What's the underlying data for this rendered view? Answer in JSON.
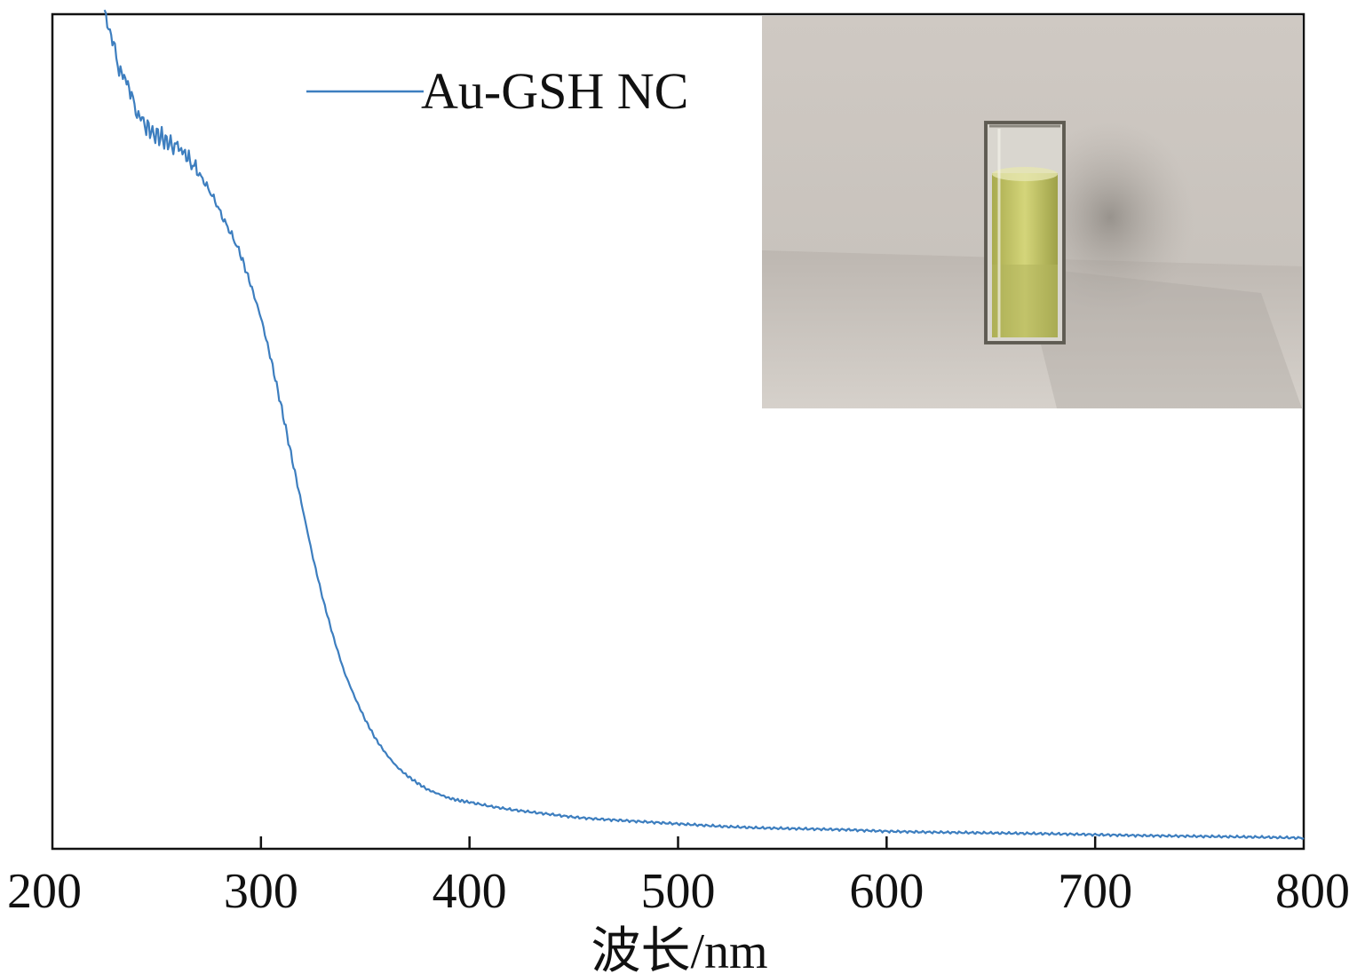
{
  "chart_data": {
    "type": "line",
    "title": "",
    "xlabel": "波长/nm",
    "ylabel": "",
    "xlim": [
      200,
      800
    ],
    "xticks": [
      200,
      300,
      400,
      500,
      600,
      700,
      800
    ],
    "xtick_labels": [
      "200",
      "300",
      "400",
      "500",
      "600",
      "700",
      "800"
    ],
    "ylim": [
      0,
      1
    ],
    "y_ticks_shown": false,
    "grid": false,
    "legend_position": "top-center",
    "series": [
      {
        "name": "Au-GSH NC",
        "color": "#3d7ebf",
        "x": [
          225,
          227,
          230,
          232,
          235,
          238,
          240,
          243,
          245,
          248,
          250,
          253,
          256,
          260,
          263,
          266,
          270,
          274,
          278,
          282,
          286,
          290,
          295,
          300,
          305,
          310,
          315,
          320,
          325,
          330,
          335,
          340,
          345,
          350,
          355,
          360,
          365,
          370,
          375,
          380,
          385,
          390,
          395,
          400,
          410,
          420,
          430,
          440,
          450,
          460,
          480,
          500,
          520,
          540,
          560,
          580,
          600,
          620,
          650,
          680,
          700,
          720,
          750,
          780,
          800
        ],
        "y": [
          1.0,
          0.987,
          0.96,
          0.935,
          0.925,
          0.905,
          0.885,
          0.875,
          0.868,
          0.86,
          0.858,
          0.853,
          0.846,
          0.843,
          0.836,
          0.826,
          0.812,
          0.796,
          0.778,
          0.756,
          0.737,
          0.715,
          0.678,
          0.638,
          0.586,
          0.528,
          0.467,
          0.408,
          0.349,
          0.297,
          0.252,
          0.212,
          0.182,
          0.155,
          0.132,
          0.114,
          0.099,
          0.088,
          0.079,
          0.071,
          0.066,
          0.061,
          0.058,
          0.056,
          0.051,
          0.047,
          0.044,
          0.041,
          0.038,
          0.036,
          0.033,
          0.03,
          0.027,
          0.025,
          0.024,
          0.023,
          0.021,
          0.02,
          0.019,
          0.018,
          0.017,
          0.016,
          0.015,
          0.014,
          0.013
        ]
      }
    ],
    "inset": {
      "description_icon": "cuvette-photo",
      "liquid_color": "#c9c96a",
      "background_color": "#c8c3bd"
    }
  }
}
